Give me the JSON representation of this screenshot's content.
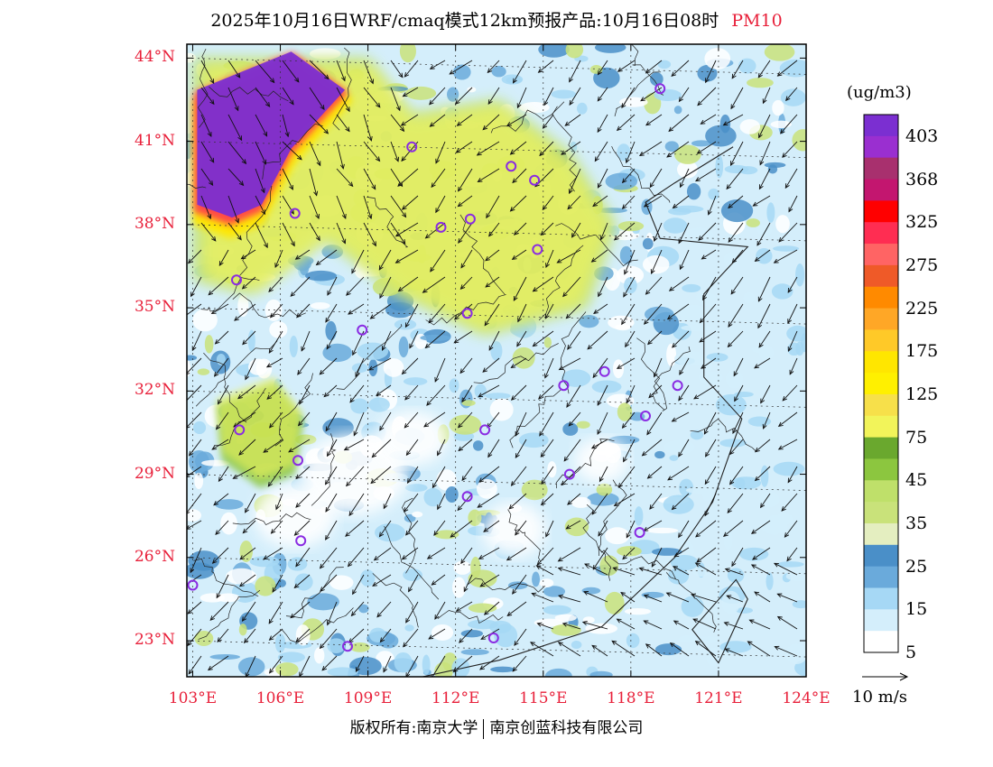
{
  "title": "2025年10月16日WRF/cmaq模式12km预报产品:10月16日08时",
  "pollutant": "PM10",
  "unit": "(ug/m3)",
  "colorbar": {
    "labels": [
      "403",
      "368",
      "325",
      "275",
      "225",
      "175",
      "125",
      "75",
      "45",
      "35",
      "25",
      "15",
      "5"
    ],
    "colors": [
      "#7b2fd1",
      "#9a2fd0",
      "#a8306e",
      "#c3166f",
      "#ff0000",
      "#ff2d52",
      "#ff6464",
      "#ef5a28",
      "#ff8a00",
      "#ffa726",
      "#ffc928",
      "#ffe600",
      "#fff000",
      "#f7e04a",
      "#f2f45a",
      "#6aa82e",
      "#8cc63f",
      "#bfe06a",
      "#c9e27a",
      "#e4eec0",
      "#4a8fc8",
      "#6aaadb",
      "#a6d8f5",
      "#d4eefb",
      "#ffffff"
    ]
  },
  "latitude_ticks": [
    "44°N",
    "41°N",
    "38°N",
    "35°N",
    "32°N",
    "29°N",
    "26°N",
    "23°N"
  ],
  "longitude_ticks": [
    "103°E",
    "106°E",
    "109°E",
    "112°E",
    "115°E",
    "118°E",
    "121°E",
    "124°E"
  ],
  "map_extent": {
    "lon_min": 102.8,
    "lon_max": 124.0,
    "lat_min": 21.7,
    "lat_max": 44.5
  },
  "map_features": {
    "high_concentration_zone": [
      [
        103.0,
        42.5
      ],
      [
        106.5,
        44.0
      ],
      [
        108.5,
        42.5
      ],
      [
        106.5,
        40.2
      ],
      [
        105.4,
        38.0
      ],
      [
        104.3,
        37.5
      ],
      [
        103.0,
        38.0
      ]
    ],
    "moderate_zone_north": [
      [
        103.0,
        44.0
      ],
      [
        109.0,
        44.0
      ],
      [
        110.5,
        42.0
      ],
      [
        113.5,
        42.5
      ],
      [
        116.0,
        40.5
      ],
      [
        117.5,
        38.0
      ],
      [
        116.5,
        35.0
      ],
      [
        113.0,
        34.0
      ],
      [
        110.0,
        35.5
      ],
      [
        107.5,
        37.5
      ],
      [
        105.0,
        35.5
      ],
      [
        103.0,
        36.0
      ]
    ],
    "moderate_zone_sichuan": [
      [
        103.8,
        31.5
      ],
      [
        105.8,
        32.3
      ],
      [
        106.8,
        31.0
      ],
      [
        106.5,
        29.0
      ],
      [
        105.3,
        28.5
      ],
      [
        104.0,
        29.5
      ]
    ],
    "monitoring_sites": [
      [
        119.0,
        42.9
      ],
      [
        110.5,
        40.8
      ],
      [
        113.9,
        40.1
      ],
      [
        114.7,
        39.6
      ],
      [
        106.5,
        38.4
      ],
      [
        111.5,
        37.9
      ],
      [
        112.5,
        38.2
      ],
      [
        114.8,
        37.1
      ],
      [
        104.5,
        36.0
      ],
      [
        108.8,
        34.2
      ],
      [
        112.4,
        34.8
      ],
      [
        115.7,
        32.2
      ],
      [
        117.1,
        32.7
      ],
      [
        119.6,
        32.2
      ],
      [
        104.6,
        30.6
      ],
      [
        106.6,
        29.5
      ],
      [
        113.0,
        30.6
      ],
      [
        118.5,
        31.1
      ],
      [
        115.9,
        29.0
      ],
      [
        112.4,
        28.2
      ],
      [
        106.7,
        26.6
      ],
      [
        118.3,
        26.9
      ],
      [
        103.0,
        25.0
      ],
      [
        108.3,
        22.8
      ],
      [
        113.3,
        23.1
      ]
    ]
  },
  "wind_reference": "10 m/s",
  "copyright": {
    "left": "版权所有:南京大学",
    "right": "南京创蓝科技有限公司"
  }
}
